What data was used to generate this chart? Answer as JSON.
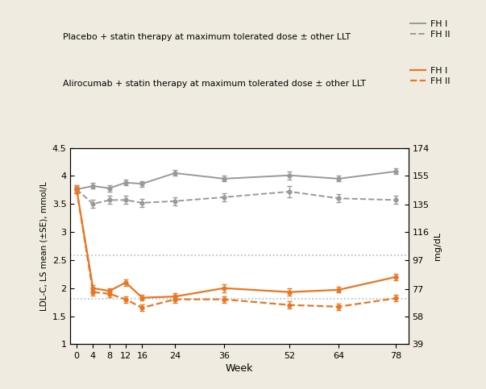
{
  "weeks": [
    0,
    4,
    8,
    12,
    16,
    24,
    36,
    52,
    64,
    78
  ],
  "placebo_FHI": [
    3.76,
    3.82,
    3.78,
    3.88,
    3.86,
    4.05,
    3.95,
    4.01,
    3.95,
    4.08
  ],
  "placebo_FHI_err": [
    0.05,
    0.05,
    0.06,
    0.05,
    0.05,
    0.05,
    0.05,
    0.07,
    0.05,
    0.05
  ],
  "placebo_FHII": [
    3.76,
    3.5,
    3.57,
    3.57,
    3.52,
    3.55,
    3.62,
    3.72,
    3.6,
    3.57
  ],
  "placebo_FHII_err": [
    0.07,
    0.07,
    0.07,
    0.07,
    0.07,
    0.07,
    0.07,
    0.1,
    0.07,
    0.07
  ],
  "ali_FHI": [
    3.76,
    2.0,
    1.95,
    2.1,
    1.83,
    1.85,
    2.0,
    1.93,
    1.97,
    2.2
  ],
  "ali_FHI_err": [
    0.05,
    0.05,
    0.05,
    0.06,
    0.05,
    0.06,
    0.07,
    0.06,
    0.05,
    0.06
  ],
  "ali_FHII": [
    3.76,
    1.93,
    1.9,
    1.8,
    1.65,
    1.8,
    1.8,
    1.7,
    1.67,
    1.82
  ],
  "ali_FHII_err": [
    0.07,
    0.06,
    0.06,
    0.06,
    0.06,
    0.06,
    0.06,
    0.06,
    0.06,
    0.06
  ],
  "hline_gray": 2.59,
  "hline_blue": 1.81,
  "color_gray": "#999999",
  "color_orange": "#E87722",
  "color_hline": "#AABBCC",
  "background": "#F0EBE0",
  "plot_bg": "#FFFFFF",
  "ylabel_left": "LDL-C, LS mean (±SE), mmol/L",
  "ylabel_right": "mg/dL",
  "xlabel": "Week",
  "ylim_left": [
    1.0,
    4.5
  ],
  "ylim_right": [
    39,
    174
  ],
  "yticks_left": [
    1.0,
    1.5,
    2.0,
    2.5,
    3.0,
    3.5,
    4.0,
    4.5
  ],
  "yticks_right_vals": [
    39,
    58,
    77,
    97,
    116,
    135,
    155,
    174
  ],
  "yticks_right_labels": [
    "39",
    "58",
    "77",
    "97",
    "116",
    "135",
    "155",
    "174"
  ],
  "xticks": [
    0,
    4,
    8,
    12,
    16,
    24,
    36,
    52,
    64,
    78
  ],
  "legend_placebo_text": "Placebo + statin therapy at maximum tolerated dose ± other LLT",
  "legend_ali_text": "Alirocumab + statin therapy at maximum tolerated dose ± other LLT",
  "legend_FHI": "FH I",
  "legend_FHII": "FH II"
}
